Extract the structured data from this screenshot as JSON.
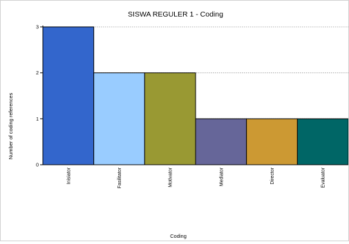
{
  "chart_data": {
    "type": "bar",
    "title": "SISWA REGULER 1 - Coding",
    "xlabel": "Coding",
    "ylabel": "Number of coding references",
    "categories": [
      "Inisiator",
      "Fasilitator",
      "Motivator",
      "Mediator",
      "Director",
      "Evaluator"
    ],
    "values": [
      3,
      2,
      2,
      1,
      1,
      1
    ],
    "colors": [
      "#3366cc",
      "#99ccff",
      "#999933",
      "#666699",
      "#cc9933",
      "#006666"
    ],
    "ylim": [
      0,
      3
    ],
    "yticks": [
      "0",
      "1",
      "2",
      "3"
    ],
    "grid": "horizontal-dotted",
    "legend": "none"
  }
}
